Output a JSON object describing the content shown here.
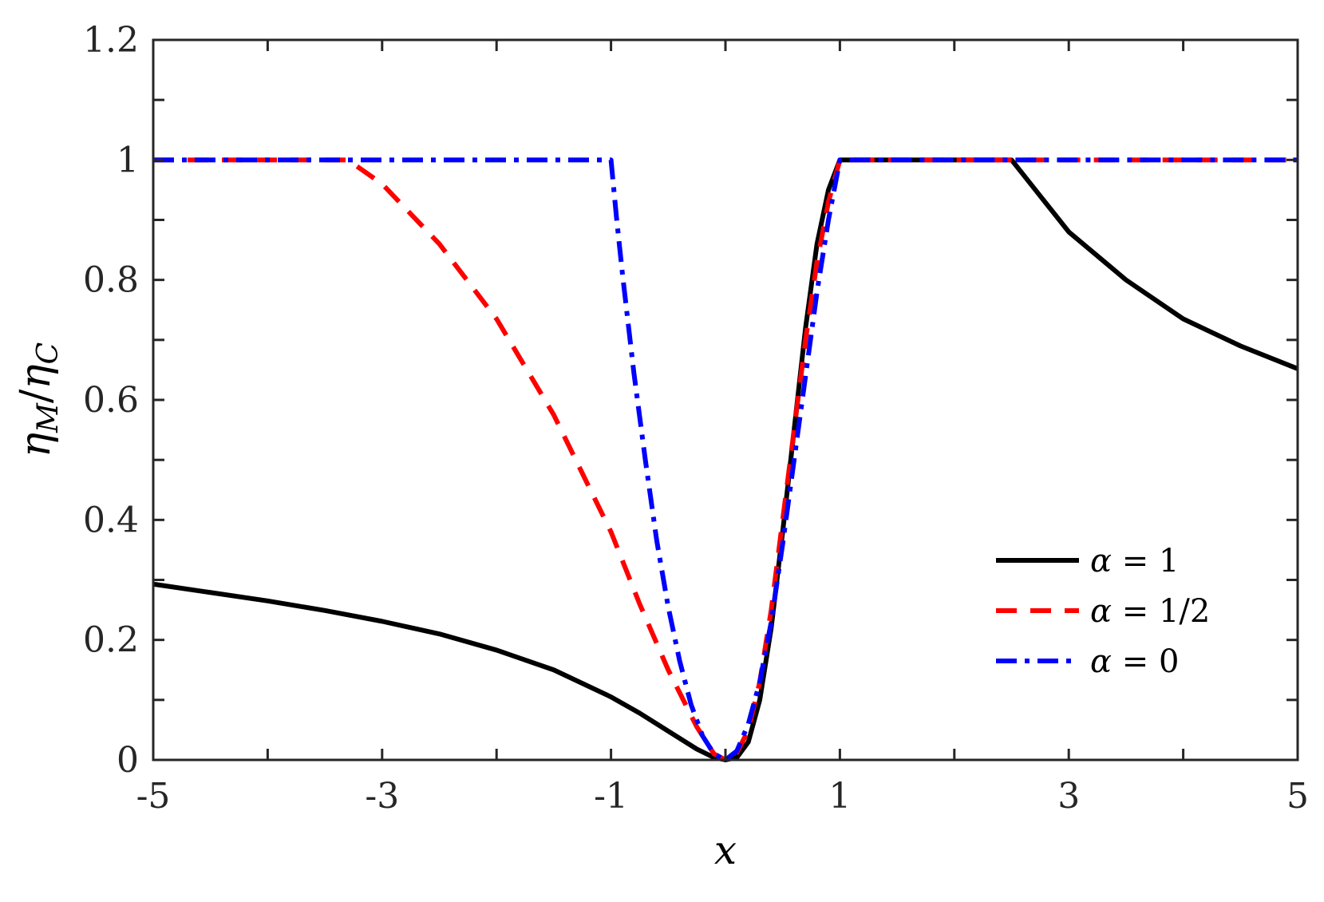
{
  "chart_data": {
    "type": "line",
    "xlabel": "x",
    "ylabel_base": "η",
    "ylabel_sub1": "M",
    "ylabel_slash": "/",
    "ylabel_sub2": "C",
    "xlim": [
      -5,
      5
    ],
    "ylim": [
      0,
      1.2
    ],
    "xticks": [
      -5,
      -4,
      -3,
      -2,
      -1,
      0,
      1,
      2,
      3,
      4,
      5
    ],
    "xtick_labels": [
      "-5",
      "",
      "-3",
      "",
      "-1",
      "",
      "1",
      "",
      "3",
      "",
      "5"
    ],
    "yticks": [
      0,
      0.1,
      0.2,
      0.3,
      0.4,
      0.5,
      0.6,
      0.7,
      0.8,
      0.9,
      1.0,
      1.1,
      1.2
    ],
    "ytick_labels": [
      "0",
      "",
      "0.2",
      "",
      "0.4",
      "",
      "0.6",
      "",
      "0.8",
      "",
      "1",
      "",
      "1.2"
    ],
    "grid": false,
    "legend_position": "lower-right",
    "series": [
      {
        "name": "α = 1",
        "legend_prefix": "α",
        "legend_suffix": " = 1",
        "color": "#000000",
        "dash": "solid",
        "x": [
          -5,
          -4.5,
          -4,
          -3.5,
          -3,
          -2.5,
          -2,
          -1.5,
          -1,
          -0.75,
          -0.5,
          -0.25,
          -0.1,
          0,
          0.1,
          0.2,
          0.3,
          0.4,
          0.5,
          0.6,
          0.7,
          0.8,
          0.9,
          1.0,
          1.5,
          2.0,
          2.5,
          2.75,
          3,
          3.5,
          4,
          4.5,
          5
        ],
        "y": [
          0.293,
          0.279,
          0.265,
          0.249,
          0.231,
          0.21,
          0.183,
          0.15,
          0.105,
          0.078,
          0.048,
          0.018,
          0.004,
          0.0,
          0.004,
          0.03,
          0.1,
          0.22,
          0.38,
          0.55,
          0.72,
          0.86,
          0.95,
          1.0,
          1.0,
          1.0,
          1.0,
          0.94,
          0.88,
          0.8,
          0.735,
          0.69,
          0.652
        ]
      },
      {
        "name": "α = 1/2",
        "legend_prefix": "α",
        "legend_suffix": " = 1/2",
        "color": "#ff0000",
        "dash": "dashed",
        "x": [
          -5,
          -3.3,
          -3.0,
          -2.5,
          -2.0,
          -1.5,
          -1.0,
          -0.75,
          -0.5,
          -0.25,
          -0.1,
          0,
          0.1,
          0.2,
          0.3,
          0.4,
          0.5,
          0.6,
          0.7,
          0.8,
          0.9,
          1.0,
          2,
          3,
          4,
          5
        ],
        "y": [
          1.0,
          1.0,
          0.96,
          0.86,
          0.735,
          0.575,
          0.38,
          0.26,
          0.15,
          0.055,
          0.01,
          0.0,
          0.012,
          0.05,
          0.13,
          0.25,
          0.4,
          0.55,
          0.7,
          0.83,
          0.93,
          1.0,
          1.0,
          1.0,
          1.0,
          1.0
        ]
      },
      {
        "name": "α = 0",
        "legend_prefix": "α",
        "legend_suffix": " = 0",
        "color": "#0000ff",
        "dash": "dashdot",
        "x": [
          -5,
          -1.0,
          -0.95,
          -0.9,
          -0.8,
          -0.7,
          -0.6,
          -0.5,
          -0.4,
          -0.3,
          -0.2,
          -0.1,
          0,
          0.1,
          0.2,
          0.3,
          0.4,
          0.5,
          0.6,
          0.7,
          0.8,
          0.9,
          1.0,
          2,
          3,
          4,
          5
        ],
        "y": [
          1.0,
          1.0,
          0.9,
          0.81,
          0.645,
          0.5,
          0.365,
          0.255,
          0.165,
          0.092,
          0.04,
          0.01,
          0.0,
          0.015,
          0.06,
          0.13,
          0.23,
          0.36,
          0.5,
          0.64,
          0.78,
          0.9,
          1.0,
          1.0,
          1.0,
          1.0,
          1.0
        ]
      }
    ]
  }
}
